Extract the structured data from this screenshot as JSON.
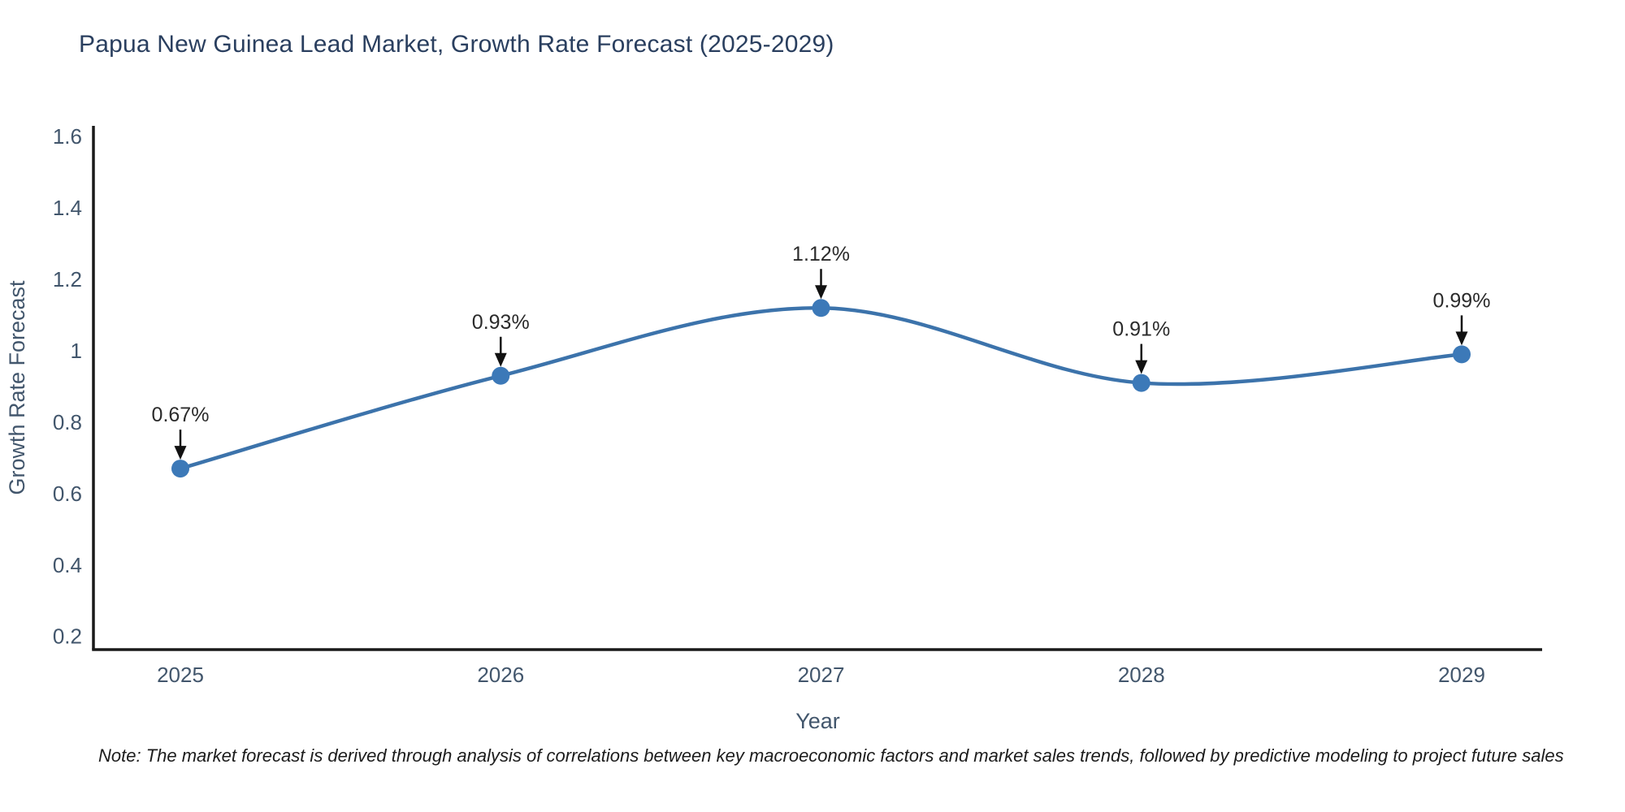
{
  "title": "Papua New Guinea Lead Market, Growth Rate Forecast (2025-2029)",
  "note": "Note: The market forecast is derived through analysis of correlations between key macroeconomic factors and market sales trends, followed by predictive modeling to project future sales",
  "chart_data": {
    "type": "line",
    "title": "Papua New Guinea Lead Market, Growth Rate Forecast (2025-2029)",
    "x": [
      2025,
      2026,
      2027,
      2028,
      2029
    ],
    "series": [
      {
        "name": "Growth Rate Forecast",
        "values": [
          0.67,
          0.93,
          1.12,
          0.91,
          0.99
        ]
      }
    ],
    "point_labels": [
      "0.67%",
      "0.93%",
      "1.12%",
      "0.91%",
      "0.99%"
    ],
    "xlabel": "Year",
    "ylabel": "Growth Rate Forecast",
    "yticks": [
      0.2,
      0.4,
      0.6,
      0.8,
      1,
      1.2,
      1.4,
      1.6
    ],
    "ylim": [
      0.163,
      1.63
    ],
    "smoothing": "spline",
    "grid": false,
    "legend": "none",
    "colors": {
      "line": "#3c73ab",
      "marker": "#3c79b8",
      "arrow": "#111111",
      "annotation_text": "#2b2b2b",
      "title_text": "#2a3f5f",
      "tick_text": "#42566c",
      "axis_line": "#1a1a1a"
    }
  }
}
